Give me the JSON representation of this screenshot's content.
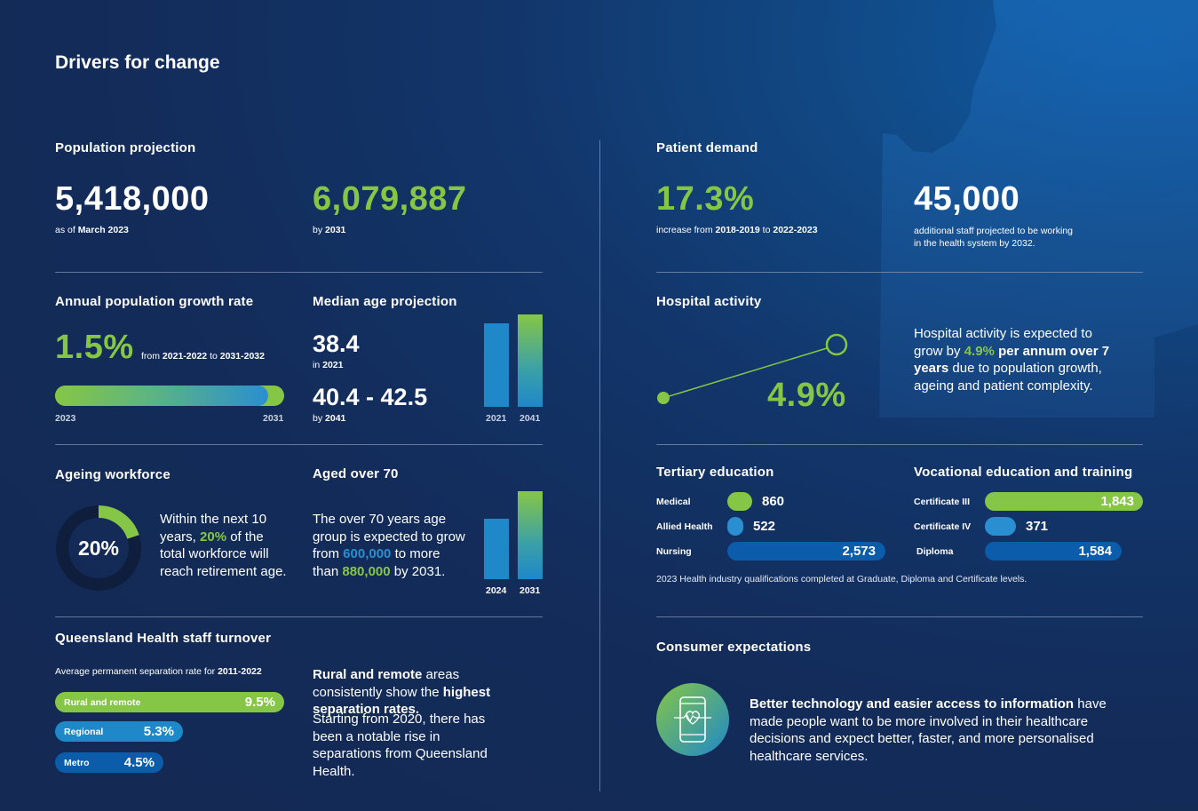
{
  "page_title": "Drivers for change",
  "population": {
    "heading": "Population projection",
    "current_value": "5,418,000",
    "current_note_prefix": "as of",
    "current_note_bold": "March 2023",
    "projected_value": "6,079,887",
    "projected_note_prefix": "by",
    "projected_note_bold": "2031"
  },
  "patient_demand": {
    "heading": "Patient demand",
    "percent": "17.3%",
    "percent_note_prefix": "increase from",
    "percent_note_from": "2018-2019",
    "percent_note_to_word": "to",
    "percent_note_to": "2022-2023",
    "staff_value": "45,000",
    "staff_note_line1": "additional staff projected to be working",
    "staff_note_line2": "in the health system by 2032."
  },
  "growth_rate": {
    "heading": "Annual population growth rate",
    "value": "1.5%",
    "note_prefix": "from",
    "note_from": "2021-2022",
    "note_to_word": "to",
    "note_to": "2031-2032",
    "start_label": "2023",
    "end_label": "2031"
  },
  "median_age": {
    "heading": "Median age projection",
    "value_2021": "38.4",
    "note_2021_prefix": "in",
    "note_2021_bold": "2021",
    "value_2041": "40.4 - 42.5",
    "note_2041_prefix": "by",
    "note_2041_bold": "2041",
    "bar_labels": [
      "2021",
      "2041"
    ]
  },
  "hospital_activity": {
    "heading": "Hospital activity",
    "value": "4.9%",
    "text_1": "Hospital activity is expected to grow by ",
    "text_green": "4.9%",
    "text_bold_1": " per annum over",
    "text_bold_2": "7 years",
    "text_2": " due to population growth, ageing and patient complexity."
  },
  "ageing_workforce": {
    "heading": "Ageing workforce",
    "donut_label": "20%",
    "donut_percent": 20,
    "text_1": "Within the next 10 years, ",
    "text_green": "20%",
    "text_2": " of the total workforce will reach retirement age."
  },
  "aged_over_70": {
    "heading": "Aged over 70",
    "text_1": "The over 70 years age group is expected to grow from ",
    "text_blue": "600,000",
    "text_2": " to more than ",
    "text_green": "880,000",
    "text_3": " by 2031.",
    "bar_labels": [
      "2024",
      "2031"
    ]
  },
  "tertiary": {
    "heading": "Tertiary education",
    "rows": [
      {
        "label": "Medical",
        "value": "860"
      },
      {
        "label": "Allied Health",
        "value": "522"
      },
      {
        "label": "Nursing",
        "value": "2,573"
      }
    ],
    "footnote": "2023 Health industry qualifications completed at Graduate, Diploma and Certificate levels."
  },
  "vocational": {
    "heading": "Vocational education and training",
    "rows": [
      {
        "label": "Certificate III",
        "value": "1,843"
      },
      {
        "label": "Certificate IV",
        "value": "371"
      },
      {
        "label": "Diploma",
        "value": "1,584"
      }
    ]
  },
  "turnover": {
    "heading": "Queensland Health staff turnover",
    "subheading_prefix": "Average permanent separation rate for",
    "subheading_bold": "2011-2022",
    "rows": [
      {
        "label": "Rural and remote",
        "value": "9.5%"
      },
      {
        "label": "Regional",
        "value": "5.3%"
      },
      {
        "label": "Metro",
        "value": "4.5%"
      }
    ],
    "text_bold_1": "Rural and remote",
    "text_1": " areas consistently show the ",
    "text_bold_2": "highest separation rates.",
    "text_2": "Starting from 2020, there has been a notable rise in separations from Queensland Health."
  },
  "consumer": {
    "heading": "Consumer expectations",
    "text_bold": "Better technology and easier access to information",
    "text_1": " have made people want to be more involved in their healthcare decisions and expect better, faster, and more personalised healthcare services."
  },
  "colors": {
    "green": "#86c646",
    "blue": "#2a8fd0",
    "dark_blue": "#0b5cab",
    "background": "#142a54"
  }
}
